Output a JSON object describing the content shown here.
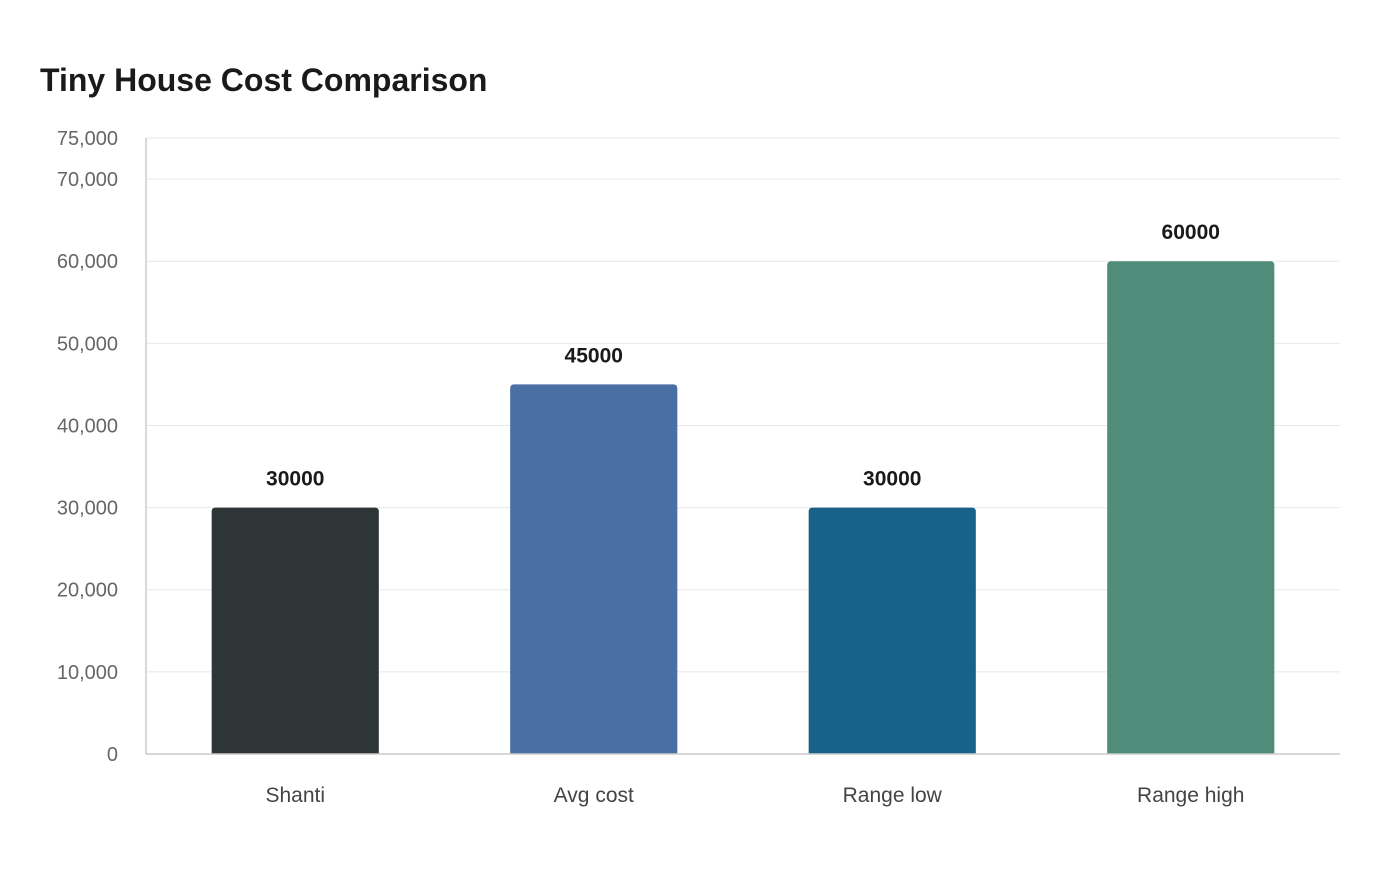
{
  "chart_data": {
    "type": "bar",
    "title": "Tiny House Cost Comparison",
    "categories": [
      "Shanti",
      "Avg cost",
      "Range low",
      "Range high"
    ],
    "values": [
      30000,
      45000,
      30000,
      60000
    ],
    "data_labels": [
      "30000",
      "45000",
      "30000",
      "60000"
    ],
    "colors": [
      "#2e3537",
      "#4a6fa5",
      "#186289",
      "#4f8d7a"
    ],
    "xlabel": "",
    "ylabel": "",
    "ylim": [
      0,
      75000
    ],
    "y_ticks": [
      0,
      10000,
      20000,
      30000,
      40000,
      50000,
      60000,
      70000,
      75000
    ],
    "y_tick_labels": [
      "0",
      "10,000",
      "20,000",
      "30,000",
      "40,000",
      "50,000",
      "60,000",
      "70,000",
      "75,000"
    ],
    "grid": true,
    "legend": "none"
  }
}
